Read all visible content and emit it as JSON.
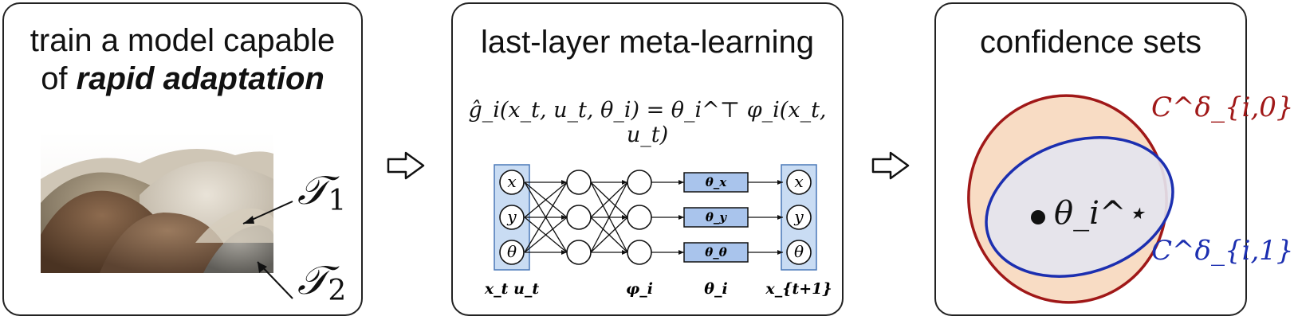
{
  "panels": {
    "left": {
      "title_line1": "train a model capable",
      "title_line2_prefix": "of ",
      "title_line2_bold": "rapid adaptation",
      "task1_label": "𝒯",
      "task1_sub": "1",
      "task2_label": "𝒯",
      "task2_sub": "2",
      "image_icon": "sand-piles-photo"
    },
    "middle": {
      "title": "last-layer meta-learning",
      "equation": "ĝ_i(x_t, u_t, θ_i) = θ_i^⊤ φ_i(x_t, u_t)",
      "input_nodes": [
        "x",
        "y",
        "θ"
      ],
      "output_nodes": [
        "x",
        "y",
        "θ"
      ],
      "weight_boxes": [
        "θ_x",
        "θ_y",
        "θ_θ"
      ],
      "bottom_labels": {
        "input": "x_t u_t",
        "features": "φ_i",
        "weights": "θ_i",
        "output": "x_{t+1}"
      }
    },
    "right": {
      "title": "confidence sets",
      "point_label": "θ_i^⋆",
      "set0_label": "C^δ_{i,0}",
      "set1_label": "C^δ_{i,1}",
      "set0_color": "#a01818",
      "set1_color": "#1c2fb0",
      "set0_fill": "#f8dcc4",
      "set1_fill": "#e4e4ee"
    }
  },
  "arrows": {
    "icon": "hollow-right-arrow-icon"
  }
}
